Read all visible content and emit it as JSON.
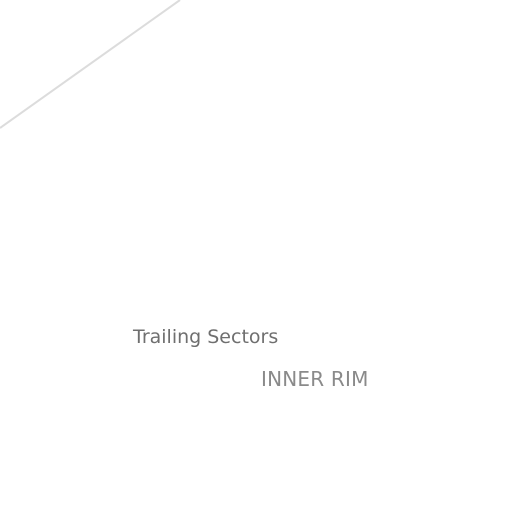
{
  "labels": {
    "primary": "Trailing Sectors",
    "secondary": "INNER RIM"
  },
  "colors": {
    "background": "#ffffff",
    "line": "#dcdcdc",
    "primary_text": "#6f6f6f",
    "secondary_text": "#8a8a8a"
  }
}
